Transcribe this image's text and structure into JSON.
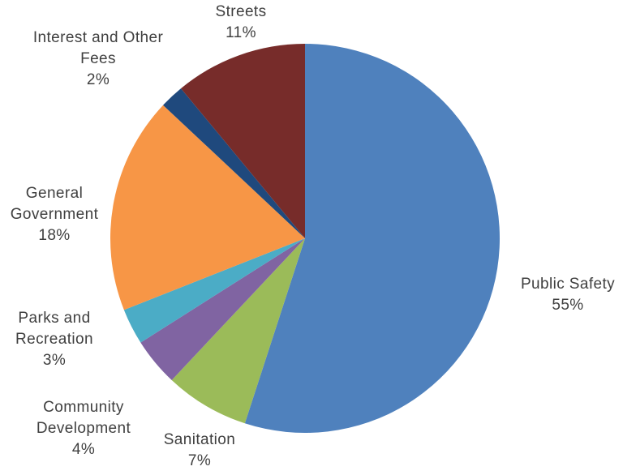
{
  "chart_data": {
    "type": "pie",
    "title": "",
    "slices": [
      {
        "name": "Public Safety",
        "label_lines": [
          "Public Safety"
        ],
        "value": 55,
        "value_label": "55%",
        "color": "#4F81BD"
      },
      {
        "name": "Sanitation",
        "label_lines": [
          "Sanitation"
        ],
        "value": 7,
        "value_label": "7%",
        "color": "#9BBB59"
      },
      {
        "name": "Community Development",
        "label_lines": [
          "Community",
          "Development"
        ],
        "value": 4,
        "value_label": "4%",
        "color": "#8064A2"
      },
      {
        "name": "Parks and Recreation",
        "label_lines": [
          "Parks and",
          "Recreation"
        ],
        "value": 3,
        "value_label": "3%",
        "color": "#4BACC6"
      },
      {
        "name": "General Government",
        "label_lines": [
          "General",
          "Government"
        ],
        "value": 18,
        "value_label": "18%",
        "color": "#F79646"
      },
      {
        "name": "Interest and Other Fees",
        "label_lines": [
          "Interest and Other",
          "Fees"
        ],
        "value": 2,
        "value_label": "2%",
        "color": "#1F497D"
      },
      {
        "name": "Streets",
        "label_lines": [
          "Streets"
        ],
        "value": 11,
        "value_label": "11%",
        "color": "#772C2A"
      }
    ]
  }
}
